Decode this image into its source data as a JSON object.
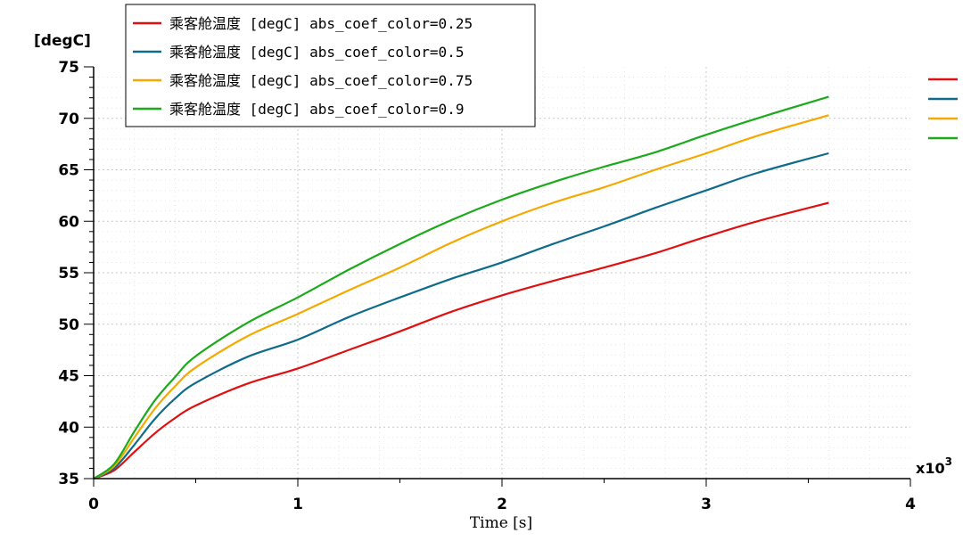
{
  "chart_data": {
    "type": "line",
    "title": "",
    "ylabel_unit": "[degC]",
    "xlabel": "Time [s]",
    "x_multiplier_base": "x10",
    "x_multiplier_exp": "3",
    "xlim": [
      0,
      4000
    ],
    "ylim": [
      35,
      75
    ],
    "x_ticks": [
      0,
      1000,
      2000,
      3000,
      4000
    ],
    "x_tick_labels": [
      "0",
      "1",
      "2",
      "3",
      "4"
    ],
    "y_ticks": [
      35,
      40,
      45,
      50,
      55,
      60,
      65,
      70,
      75
    ],
    "y_tick_labels": [
      "35",
      "40",
      "45",
      "50",
      "55",
      "60",
      "65",
      "70",
      "75"
    ],
    "grid": true,
    "legend_position": "top-left",
    "series": [
      {
        "name": "乘客舱温度 [degC] abs_coef_color=0.25",
        "color": "#e01010",
        "x": [
          0,
          100,
          200,
          300,
          400,
          500,
          750,
          1000,
          1250,
          1500,
          1750,
          2000,
          2250,
          2500,
          2750,
          3000,
          3250,
          3600
        ],
        "y": [
          35,
          35.8,
          37.6,
          39.4,
          40.9,
          42.1,
          44.2,
          45.7,
          47.5,
          49.3,
          51.2,
          52.8,
          54.2,
          55.5,
          56.9,
          58.5,
          60.0,
          61.8
        ]
      },
      {
        "name": "乘客舱温度 [degC] abs_coef_color=0.5",
        "color": "#0e6b8c",
        "x": [
          0,
          100,
          200,
          300,
          400,
          500,
          750,
          1000,
          1250,
          1500,
          1750,
          2000,
          2250,
          2500,
          2750,
          3000,
          3250,
          3600
        ],
        "y": [
          35,
          36.0,
          38.3,
          40.8,
          42.8,
          44.3,
          46.8,
          48.5,
          50.7,
          52.6,
          54.4,
          56.0,
          57.8,
          59.5,
          61.3,
          63.0,
          64.7,
          66.6
        ]
      },
      {
        "name": "乘客舱温度 [degC] abs_coef_color=0.75",
        "color": "#f5a800",
        "x": [
          0,
          100,
          200,
          300,
          400,
          500,
          750,
          1000,
          1250,
          1500,
          1750,
          2000,
          2250,
          2500,
          2750,
          3000,
          3250,
          3600
        ],
        "y": [
          35,
          36.2,
          39.0,
          41.8,
          44.0,
          45.8,
          48.8,
          51.0,
          53.3,
          55.5,
          57.9,
          60.0,
          61.8,
          63.3,
          65.0,
          66.6,
          68.3,
          70.3
        ]
      },
      {
        "name": "乘客舱温度 [degC] abs_coef_color=0.9",
        "color": "#1aaa1a",
        "x": [
          0,
          100,
          200,
          300,
          400,
          500,
          750,
          1000,
          1250,
          1500,
          1750,
          2000,
          2250,
          2500,
          2750,
          3000,
          3250,
          3600
        ],
        "y": [
          35,
          36.4,
          39.6,
          42.6,
          44.9,
          46.9,
          50.1,
          52.6,
          55.3,
          57.8,
          60.1,
          62.1,
          63.8,
          65.3,
          66.7,
          68.4,
          70.0,
          72.1
        ]
      }
    ]
  }
}
